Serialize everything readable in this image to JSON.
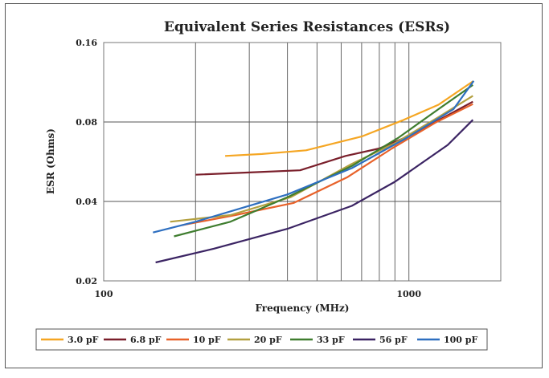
{
  "chart_data": {
    "type": "line",
    "title": "Equivalent Series Resistances (ESRs)",
    "xlabel": "Frequency (MHz)",
    "ylabel": "ESR (Ohms)",
    "xscale": "log",
    "yscale": "log",
    "xlim": [
      100,
      2000
    ],
    "ylim": [
      0.02,
      0.16
    ],
    "xticks": [
      "100",
      "1000"
    ],
    "yticks": [
      "0.16",
      "0.08",
      "0.04",
      "0.02"
    ],
    "grid": true,
    "legend": "bottom",
    "series": [
      {
        "name": "3.0 pF",
        "color": "#f5a623",
        "points": [
          [
            250,
            0.0595
          ],
          [
            330,
            0.0605
          ],
          [
            460,
            0.0625
          ],
          [
            700,
            0.0705
          ],
          [
            950,
            0.081
          ],
          [
            1250,
            0.093
          ],
          [
            1620,
            0.114
          ]
        ]
      },
      {
        "name": "6.8 pF",
        "color": "#7a1f2b",
        "points": [
          [
            200,
            0.0505
          ],
          [
            300,
            0.0515
          ],
          [
            440,
            0.0525
          ],
          [
            620,
            0.0595
          ],
          [
            800,
            0.0635
          ],
          [
            1020,
            0.0715
          ],
          [
            1620,
            0.0955
          ]
        ]
      },
      {
        "name": "10 pF",
        "color": "#e8622a",
        "points": [
          [
            180,
            0.0325
          ],
          [
            270,
            0.0355
          ],
          [
            420,
            0.0395
          ],
          [
            630,
            0.0495
          ],
          [
            880,
            0.0635
          ],
          [
            1220,
            0.0795
          ],
          [
            1620,
            0.0935
          ]
        ]
      },
      {
        "name": "20 pF",
        "color": "#b3a040",
        "points": [
          [
            165,
            0.0335
          ],
          [
            260,
            0.0355
          ],
          [
            410,
            0.0415
          ],
          [
            650,
            0.0555
          ],
          [
            900,
            0.0665
          ],
          [
            1250,
            0.0835
          ],
          [
            1620,
            0.1005
          ]
        ]
      },
      {
        "name": "33 pF",
        "color": "#3f7d2f",
        "points": [
          [
            170,
            0.0295
          ],
          [
            260,
            0.0335
          ],
          [
            400,
            0.0415
          ],
          [
            650,
            0.0545
          ],
          [
            920,
            0.0695
          ],
          [
            1250,
            0.0895
          ],
          [
            1620,
            0.1105
          ]
        ]
      },
      {
        "name": "56 pF",
        "color": "#3b2463",
        "points": [
          [
            148,
            0.0235
          ],
          [
            230,
            0.0265
          ],
          [
            400,
            0.0315
          ],
          [
            650,
            0.0385
          ],
          [
            900,
            0.0475
          ],
          [
            1340,
            0.0655
          ],
          [
            1620,
            0.0815
          ]
        ]
      },
      {
        "name": "100 pF",
        "color": "#2e6fc0",
        "points": [
          [
            145,
            0.0305
          ],
          [
            200,
            0.0335
          ],
          [
            400,
            0.0425
          ],
          [
            650,
            0.0535
          ],
          [
            980,
            0.0695
          ],
          [
            1400,
            0.0895
          ],
          [
            1630,
            0.1145
          ]
        ]
      }
    ]
  }
}
